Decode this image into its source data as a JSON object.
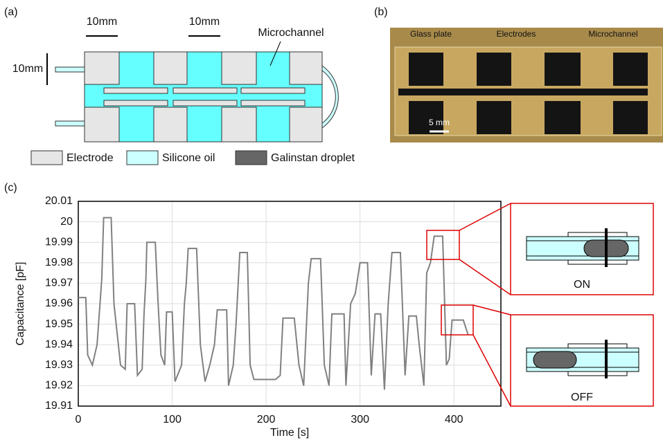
{
  "panels": {
    "a": "(a)",
    "b": "(b)",
    "c": "(c)"
  },
  "diagram_a": {
    "dim_left": "10mm",
    "dim_mid": "10mm",
    "dim_side": "10mm",
    "callout": "Microchannel",
    "legend": [
      "Electrode",
      "Silicone oil",
      "Galinstan droplet"
    ]
  },
  "photo_b": {
    "labels": [
      "Glass plate",
      "Electrodes",
      "Microchannel"
    ],
    "scale": "5 mm"
  },
  "insets": {
    "on": "ON",
    "off": "OFF"
  },
  "chart_data": {
    "type": "line",
    "xlabel": "Time [s]",
    "ylabel": "Capacitance [pF]",
    "color": "#808080",
    "grid": true,
    "xlim": [
      0,
      450
    ],
    "xticks": [
      0,
      100,
      200,
      300,
      400
    ],
    "ylim": [
      19.91,
      20.01
    ],
    "yticks": [
      19.91,
      19.92,
      19.93,
      19.94,
      19.95,
      19.96,
      19.97,
      19.98,
      19.99,
      20,
      20.01
    ],
    "x": [
      0,
      8,
      10,
      15,
      20,
      25,
      27,
      35,
      38,
      45,
      50,
      52,
      60,
      63,
      68,
      70,
      72,
      73,
      82,
      85,
      88,
      92,
      94,
      100,
      103,
      110,
      113,
      115,
      117,
      126,
      130,
      135,
      140,
      145,
      148,
      158,
      160,
      165,
      168,
      172,
      180,
      183,
      187,
      210,
      215,
      218,
      230,
      235,
      240,
      245,
      248,
      258,
      262,
      267,
      270,
      283,
      285,
      290,
      295,
      300,
      308,
      312,
      316,
      322,
      326,
      330,
      334,
      343,
      348,
      352,
      360,
      363,
      368,
      371,
      375,
      379,
      388,
      392,
      395,
      398,
      410,
      415
    ],
    "values": [
      19.963,
      19.963,
      19.935,
      19.93,
      19.94,
      19.972,
      20.002,
      20.002,
      19.96,
      19.93,
      19.928,
      19.96,
      19.96,
      19.925,
      19.928,
      19.955,
      19.972,
      19.99,
      19.99,
      19.96,
      19.935,
      19.93,
      19.956,
      19.956,
      19.922,
      19.93,
      19.96,
      19.97,
      19.987,
      19.987,
      19.94,
      19.922,
      19.93,
      19.94,
      19.957,
      19.957,
      19.92,
      19.93,
      19.95,
      19.985,
      19.985,
      19.93,
      19.923,
      19.923,
      19.925,
      19.953,
      19.953,
      19.93,
      19.92,
      19.97,
      19.982,
      19.982,
      19.93,
      19.92,
      19.955,
      19.955,
      19.92,
      19.96,
      19.965,
      19.98,
      19.98,
      19.925,
      19.955,
      19.955,
      19.918,
      19.96,
      19.985,
      19.985,
      19.925,
      19.954,
      19.954,
      19.94,
      19.92,
      19.975,
      19.98,
      19.993,
      19.993,
      19.93,
      19.933,
      19.952,
      19.952,
      19.945
    ]
  }
}
